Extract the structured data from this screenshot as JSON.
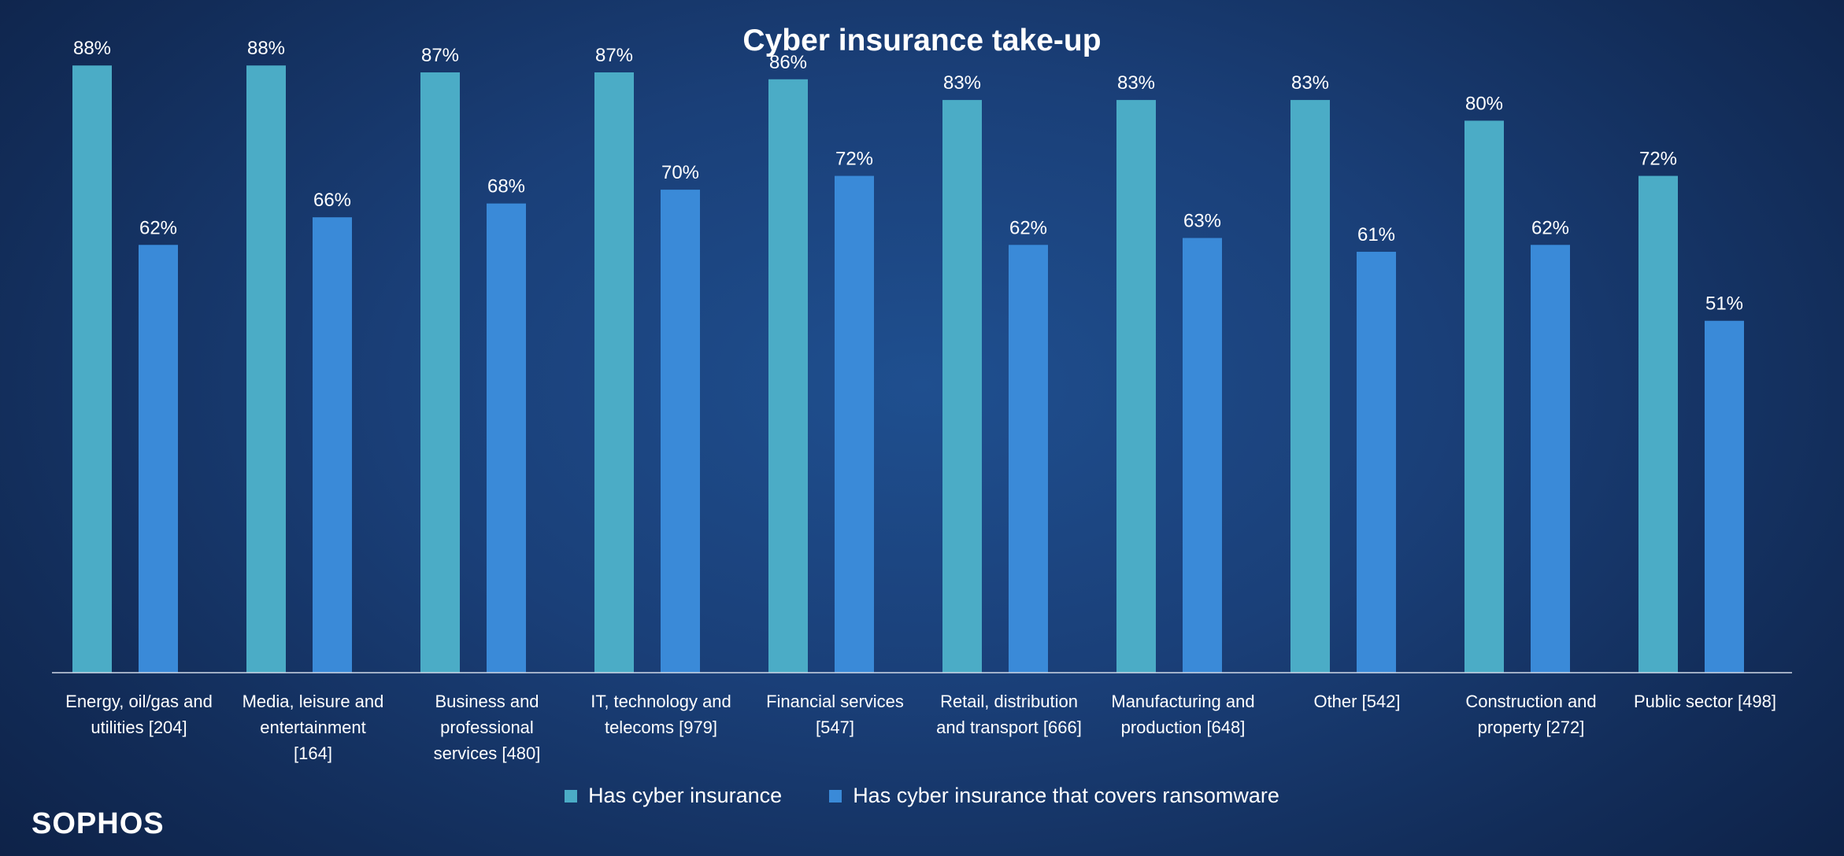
{
  "chart_data": {
    "type": "bar",
    "title": "Cyber insurance take-up",
    "categories": [
      [
        "Energy, oil/gas and",
        "utilities [204]"
      ],
      [
        "Media, leisure and",
        "entertainment",
        "[164]"
      ],
      [
        "Business and",
        "professional",
        "services [480]"
      ],
      [
        "IT, technology and",
        "telecoms [979]"
      ],
      [
        "Financial services",
        "[547]"
      ],
      [
        "Retail, distribution",
        "and transport [666]"
      ],
      [
        "Manufacturing and",
        "production [648]"
      ],
      [
        "Other [542]"
      ],
      [
        "Construction and",
        "property [272]"
      ],
      [
        "Public sector [498]"
      ]
    ],
    "series": [
      {
        "name": "Has cyber insurance",
        "color": "#4bacc6",
        "values": [
          88,
          88,
          87,
          87,
          86,
          83,
          83,
          83,
          80,
          72
        ]
      },
      {
        "name": "Has cyber insurance that covers ransomware",
        "color": "#3a8ad8",
        "values": [
          62,
          66,
          68,
          70,
          72,
          62,
          63,
          61,
          62,
          51
        ]
      }
    ],
    "value_suffix": "%",
    "ylim": [
      0,
      100
    ],
    "grid": false,
    "legend_position": "bottom"
  },
  "brand": {
    "logo_text": "SOPHOS"
  }
}
